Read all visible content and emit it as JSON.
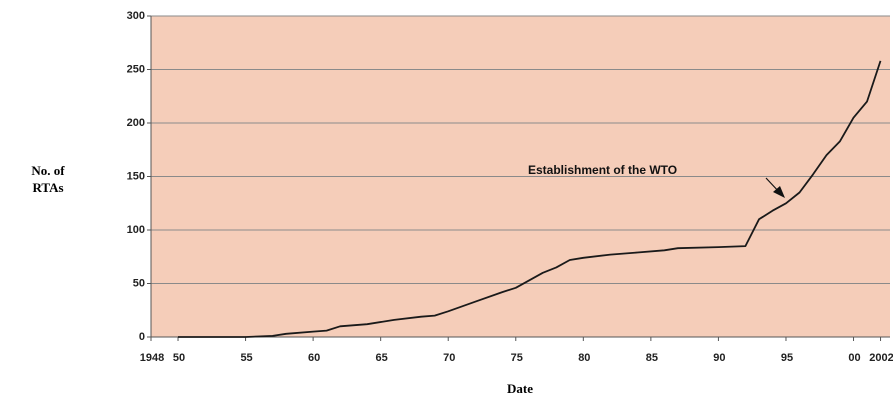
{
  "chart_data": {
    "type": "line",
    "ylabel_lines": [
      "No. of",
      "RTAs"
    ],
    "xlabel": "Date",
    "annotation": "Establishment of the WTO",
    "x": [
      1950,
      1955,
      1957,
      1958,
      1960,
      1961,
      1962,
      1964,
      1966,
      1968,
      1969,
      1970,
      1972,
      1974,
      1975,
      1976,
      1977,
      1978,
      1979,
      1980,
      1982,
      1984,
      1986,
      1987,
      1990,
      1992,
      1993,
      1994,
      1995,
      1996,
      1997,
      1998,
      1999,
      2000,
      2001,
      2002
    ],
    "values": [
      0,
      0,
      1,
      3,
      5,
      6,
      10,
      12,
      16,
      19,
      20,
      24,
      33,
      42,
      46,
      53,
      60,
      65,
      72,
      74,
      77,
      79,
      81,
      83,
      84,
      85,
      110,
      118,
      125,
      135,
      152,
      170,
      183,
      205,
      220,
      258
    ],
    "color": "#1a1a1a",
    "background": "#f5cdb9",
    "xlim": [
      1948,
      2002.7
    ],
    "ylim": [
      0,
      300
    ],
    "xticks": [
      1948,
      {
        "value": 1950,
        "label": "50"
      },
      {
        "value": 1955,
        "label": "55"
      },
      {
        "value": 1960,
        "label": "60"
      },
      {
        "value": 1965,
        "label": "65"
      },
      {
        "value": 1970,
        "label": "70"
      },
      {
        "value": 1975,
        "label": "75"
      },
      {
        "value": 1980,
        "label": "80"
      },
      {
        "value": 1985,
        "label": "85"
      },
      {
        "value": 1990,
        "label": "90"
      },
      {
        "value": 1995,
        "label": "95"
      },
      {
        "value": 2000,
        "label": "00"
      },
      2002
    ],
    "yticks": [
      0,
      50,
      100,
      150,
      200,
      250,
      300
    ],
    "grid": true
  }
}
